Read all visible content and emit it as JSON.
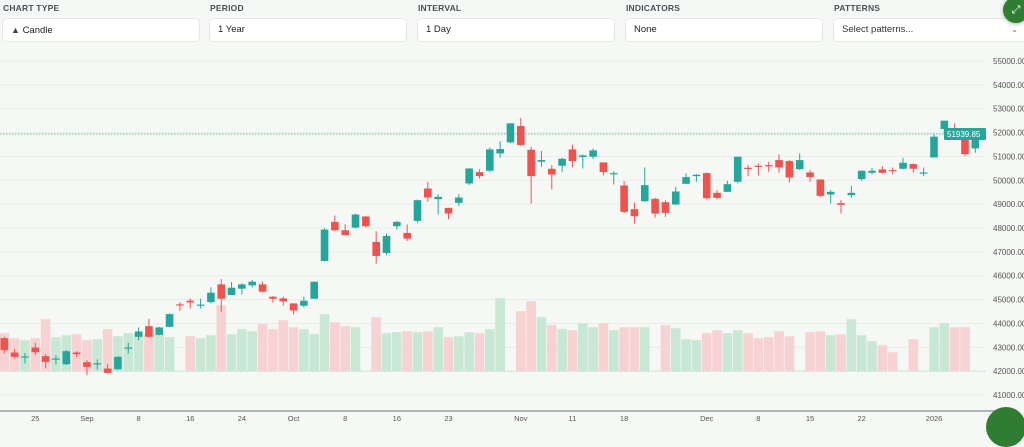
{
  "controls": {
    "chart_type": {
      "label": "CHART TYPE",
      "value": "Candle",
      "icon": "candle-icon"
    },
    "period": {
      "label": "PERIOD",
      "value": "1 Year"
    },
    "interval": {
      "label": "INTERVAL",
      "value": "1 Day"
    },
    "indicators": {
      "label": "INDICATORS",
      "value": "None"
    },
    "patterns": {
      "label": "PATTERNS",
      "placeholder": "Select patterns..."
    }
  },
  "expand_button": {
    "icon": "expand-icon"
  },
  "colors": {
    "up": "#26a69a",
    "down": "#ef5350",
    "volume_up": "#c9e7d5",
    "volume_down": "#f7d2d2",
    "price_badge": "#26a69a",
    "fab": "#2e7d32"
  },
  "chart_data": {
    "type": "candlestick",
    "ylim": [
      41000,
      55000
    ],
    "y_ticks": [
      "55000.00",
      "54000.00",
      "53000.00",
      "52000.00",
      "51000.00",
      "50000.00",
      "49000.00",
      "48000.00",
      "47000.00",
      "46000.00",
      "45000.00",
      "44000.00",
      "43000.00",
      "42000.00",
      "41000.00"
    ],
    "y_tick_values": [
      55000,
      54000,
      53000,
      52000,
      51000,
      50000,
      49000,
      48000,
      47000,
      46000,
      45000,
      44000,
      43000,
      42000,
      41000
    ],
    "last_price": "51939.85",
    "last_price_value": 51939.85,
    "volume_baseline": 42000,
    "grid": true,
    "x_ticks": [
      {
        "label": "25",
        "index": 3
      },
      {
        "label": "Sep",
        "index": 8
      },
      {
        "label": "8",
        "index": 13
      },
      {
        "label": "16",
        "index": 18
      },
      {
        "label": "24",
        "index": 23
      },
      {
        "label": "Oct",
        "index": 28
      },
      {
        "label": "8",
        "index": 33
      },
      {
        "label": "16",
        "index": 38
      },
      {
        "label": "23",
        "index": 43
      },
      {
        "label": "Nov",
        "index": 50
      },
      {
        "label": "11",
        "index": 55
      },
      {
        "label": "18",
        "index": 60
      },
      {
        "label": "Dec",
        "index": 68
      },
      {
        "label": "8",
        "index": 73
      },
      {
        "label": "15",
        "index": 78
      },
      {
        "label": "22",
        "index": 83
      },
      {
        "label": "2026",
        "index": 90
      }
    ],
    "candle_fields": [
      "open",
      "high",
      "low",
      "close",
      "volume_relative"
    ],
    "candles": [
      [
        43384,
        43440,
        42740,
        42880,
        38
      ],
      [
        42782,
        42922,
        42530,
        42600,
        33
      ],
      [
        42600,
        42768,
        42320,
        42620,
        31
      ],
      [
        42992,
        43188,
        42670,
        42796,
        33
      ],
      [
        42628,
        42712,
        42138,
        42390,
        52
      ],
      [
        42500,
        42670,
        42278,
        42530,
        34
      ],
      [
        42292,
        42880,
        42260,
        42838,
        36
      ],
      [
        42782,
        42838,
        42600,
        42712,
        37
      ],
      [
        42376,
        42460,
        41830,
        42180,
        31
      ],
      [
        42300,
        42488,
        42068,
        42330,
        32
      ],
      [
        42110,
        42292,
        41900,
        41928,
        42
      ],
      [
        42082,
        42628,
        42040,
        42600,
        35
      ],
      [
        42960,
        43188,
        42740,
        42992,
        38
      ],
      [
        43440,
        43832,
        43300,
        43664,
        37
      ],
      [
        43888,
        44196,
        43412,
        43440,
        37
      ],
      [
        43524,
        43860,
        43500,
        43832,
        37
      ],
      [
        43860,
        44420,
        43830,
        44392,
        34
      ],
      [
        44800,
        44896,
        44532,
        44770,
        0
      ],
      [
        44952,
        45050,
        44630,
        44882,
        35
      ],
      [
        44760,
        45036,
        44630,
        44790,
        33
      ],
      [
        44896,
        45512,
        44840,
        45288,
        36
      ],
      [
        45638,
        45862,
        44490,
        45036,
        66
      ],
      [
        45190,
        45736,
        45190,
        45498,
        37
      ],
      [
        45456,
        45680,
        45218,
        45638,
        42
      ],
      [
        45596,
        45820,
        45512,
        45750,
        40
      ],
      [
        45638,
        45750,
        45302,
        45330,
        47
      ],
      [
        45120,
        45150,
        44880,
        45036,
        42
      ],
      [
        45050,
        45120,
        44742,
        44924,
        51
      ],
      [
        44840,
        44840,
        44378,
        44546,
        44
      ],
      [
        44742,
        45120,
        44672,
        44952,
        42
      ],
      [
        45036,
        45764,
        45036,
        45750,
        37
      ],
      [
        46619,
        48000,
        46600,
        47935,
        57
      ],
      [
        48257,
        48523,
        47879,
        47907,
        49
      ],
      [
        47907,
        48159,
        47697,
        47697,
        45
      ],
      [
        48019,
        48600,
        47990,
        48565,
        44
      ],
      [
        48481,
        48510,
        48020,
        48075,
        0
      ],
      [
        47417,
        47865,
        46507,
        46829,
        54
      ],
      [
        46955,
        47767,
        46857,
        47669,
        38
      ],
      [
        48075,
        48299,
        47935,
        48257,
        39
      ],
      [
        47795,
        48145,
        47459,
        47557,
        40
      ],
      [
        48299,
        49195,
        48215,
        49167,
        39
      ],
      [
        49657,
        49937,
        49097,
        49279,
        40
      ],
      [
        49209,
        49419,
        48565,
        49307,
        44
      ],
      [
        48845,
        48845,
        48369,
        48607,
        34
      ],
      [
        49055,
        49419,
        48915,
        49279,
        35
      ],
      [
        49867,
        50497,
        49800,
        50497,
        39
      ],
      [
        50343,
        50455,
        50077,
        50175,
        38
      ],
      [
        50399,
        51380,
        50329,
        51295,
        42
      ],
      [
        51127,
        51645,
        50945,
        51309,
        73
      ],
      [
        51589,
        52387,
        51550,
        52387,
        0
      ],
      [
        52275,
        52611,
        51449,
        51477,
        60
      ],
      [
        51281,
        51407,
        49027,
        50175,
        70
      ],
      [
        50777,
        51225,
        50567,
        50847,
        54
      ],
      [
        50483,
        50637,
        49615,
        50245,
        46
      ],
      [
        50609,
        50945,
        50357,
        50903,
        42
      ],
      [
        51295,
        51491,
        50539,
        50805,
        41
      ],
      [
        50973,
        51085,
        50497,
        51043,
        48
      ],
      [
        50987,
        51323,
        50889,
        51253,
        44
      ],
      [
        50749,
        50749,
        50203,
        50343,
        48
      ],
      [
        50259,
        50385,
        49825,
        50301,
        41
      ],
      [
        49783,
        49965,
        48635,
        48677,
        44
      ],
      [
        48789,
        49069,
        48187,
        48495,
        44
      ],
      [
        49125,
        50539,
        49097,
        49797,
        44
      ],
      [
        49223,
        49265,
        48439,
        48607,
        0
      ],
      [
        49083,
        49167,
        48467,
        48635,
        46
      ],
      [
        48985,
        49727,
        48957,
        49531,
        43
      ],
      [
        49853,
        50287,
        49839,
        50133,
        32
      ],
      [
        50175,
        50259,
        49937,
        50231,
        31
      ],
      [
        50301,
        50329,
        49195,
        49251,
        38
      ],
      [
        49475,
        49587,
        49195,
        49265,
        41
      ],
      [
        49517,
        49979,
        49517,
        49839,
        38
      ],
      [
        49937,
        50987,
        49867,
        50987,
        41
      ],
      [
        50525,
        50637,
        50175,
        50469,
        38
      ],
      [
        50609,
        50707,
        50203,
        50567,
        33
      ],
      [
        50637,
        50777,
        50357,
        50609,
        34
      ],
      [
        50847,
        51085,
        50315,
        50539,
        40
      ],
      [
        50805,
        50847,
        49909,
        50119,
        35
      ],
      [
        50469,
        51127,
        50427,
        50847,
        0
      ],
      [
        50329,
        50427,
        49937,
        50133,
        39
      ],
      [
        50035,
        50035,
        49307,
        49349,
        40
      ],
      [
        49405,
        49587,
        49027,
        49517,
        36
      ],
      [
        49041,
        49167,
        48607,
        48971,
        37
      ],
      [
        49377,
        49769,
        49265,
        49475,
        52
      ],
      [
        50049,
        50427,
        49979,
        50399,
        36
      ],
      [
        50315,
        50525,
        50245,
        50399,
        30
      ],
      [
        50455,
        50595,
        50287,
        50315,
        26
      ],
      [
        50427,
        50539,
        50245,
        50385,
        19
      ],
      [
        50483,
        50945,
        50455,
        50735,
        0
      ],
      [
        50679,
        50707,
        50315,
        50483,
        32
      ],
      [
        50287,
        50539,
        50175,
        50329,
        0
      ],
      [
        50959,
        51925,
        50959,
        51827,
        44
      ],
      [
        52149,
        52499,
        51967,
        52499,
        48
      ],
      [
        52135,
        52387,
        51799,
        51939,
        44
      ],
      [
        51743,
        51757,
        51015,
        51099,
        44
      ],
      [
        51337,
        51967,
        51155,
        51939.85,
        0
      ]
    ]
  }
}
